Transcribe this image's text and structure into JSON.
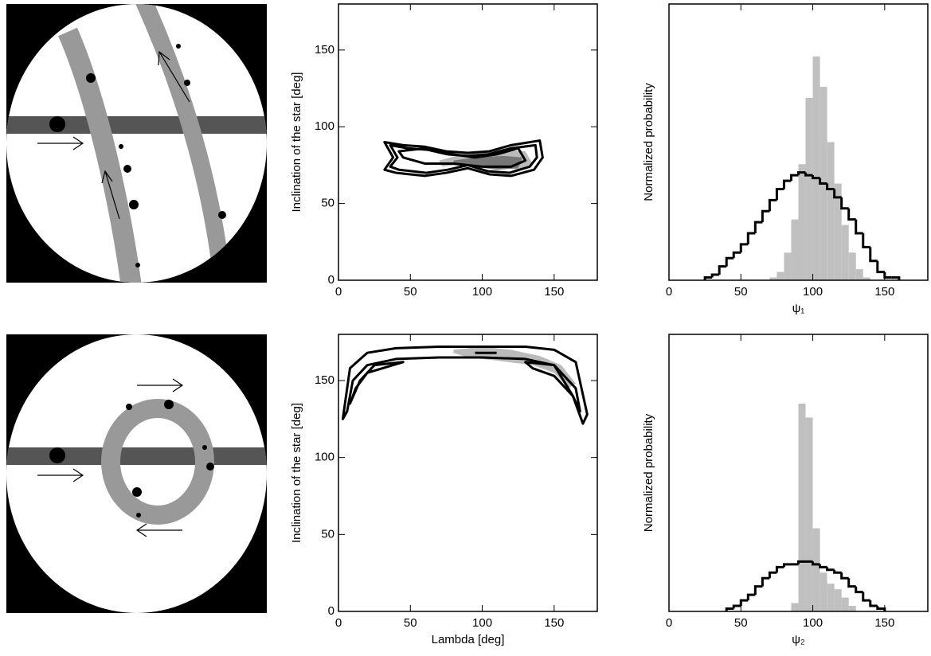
{
  "chart_data": [
    {
      "type": "contour",
      "ylabel": "Inclination of the star [deg]",
      "xlim": [
        0,
        180
      ],
      "ylim": [
        0,
        180
      ],
      "xticks": [
        0,
        50,
        100,
        150
      ],
      "yticks": [
        0,
        50,
        100,
        150
      ],
      "contours": [
        {
          "x": [
            70,
            90,
            110,
            130,
            135,
            125,
            110,
            90,
            72
          ],
          "y": [
            78,
            83,
            85,
            84,
            76,
            72,
            74,
            76,
            74
          ],
          "fill": "#bbbbbb"
        },
        {
          "x": [
            80,
            95,
            115,
            128,
            125,
            110,
            95,
            80
          ],
          "y": [
            78,
            80,
            81,
            80,
            73,
            72,
            74,
            75
          ],
          "fill": "#777777"
        },
        {
          "x": [
            32,
            45,
            60,
            75,
            90,
            105,
            120,
            140,
            142,
            136,
            120,
            105,
            90,
            75,
            60,
            40,
            32,
            38
          ],
          "y": [
            90,
            88,
            87,
            84,
            83,
            84,
            88,
            91,
            80,
            72,
            68,
            69,
            73,
            70,
            68,
            70,
            72,
            80
          ],
          "stroke": "#000000"
        },
        {
          "x": [
            36,
            48,
            62,
            76,
            90,
            104,
            120,
            137,
            138,
            133,
            119,
            104,
            90,
            76,
            61,
            42,
            36,
            41
          ],
          "y": [
            88,
            86,
            85,
            82,
            81,
            82,
            86,
            88,
            80,
            74,
            70,
            71,
            75,
            72,
            70,
            72,
            74,
            80
          ],
          "stroke": "#000000"
        },
        {
          "x": [
            42,
            60,
            80,
            95,
            110,
            125,
            130,
            120,
            100,
            80,
            60,
            45
          ],
          "y": [
            84,
            86,
            82,
            80,
            82,
            86,
            78,
            74,
            74,
            76,
            76,
            80
          ],
          "stroke": "#000000"
        }
      ]
    },
    {
      "type": "histogram",
      "ylabel": "Normalized probability",
      "xlabel": "ψ₁",
      "xlim": [
        0,
        180
      ],
      "ylim": [
        0,
        1
      ],
      "xticks": [
        0,
        50,
        100,
        150
      ],
      "bins": [
        25,
        30,
        35,
        40,
        45,
        50,
        55,
        60,
        65,
        70,
        75,
        80,
        85,
        90,
        95,
        100,
        105,
        110,
        115,
        120,
        125,
        130,
        135,
        140,
        145,
        150,
        155,
        160
      ],
      "series": [
        {
          "color": "#c0c0c0",
          "style": "fill",
          "values": [
            0,
            0,
            0,
            0,
            0,
            0,
            0,
            0,
            0,
            0.01,
            0.03,
            0.1,
            0.22,
            0.42,
            0.66,
            0.81,
            0.7,
            0.5,
            0.35,
            0.2,
            0.1,
            0.04,
            0.01,
            0,
            0,
            0,
            0
          ]
        },
        {
          "color": "#000000",
          "style": "step",
          "values": [
            0.01,
            0.02,
            0.05,
            0.08,
            0.1,
            0.13,
            0.17,
            0.21,
            0.25,
            0.29,
            0.33,
            0.36,
            0.38,
            0.39,
            0.38,
            0.37,
            0.35,
            0.33,
            0.3,
            0.26,
            0.22,
            0.17,
            0.12,
            0.07,
            0.03,
            0.01,
            0.01
          ]
        }
      ]
    },
    {
      "type": "contour",
      "ylabel": "Inclination of the star [deg]",
      "xlabel": "Lambda [deg]",
      "xlim": [
        0,
        180
      ],
      "ylim": [
        0,
        180
      ],
      "xticks": [
        0,
        50,
        100,
        150
      ],
      "yticks": [
        0,
        50,
        100,
        150
      ],
      "contours": [
        {
          "x": [
            80,
            100,
            120,
            140,
            155,
            165,
            160,
            150,
            135,
            110,
            90,
            80
          ],
          "y": [
            170,
            172,
            170,
            166,
            160,
            148,
            145,
            155,
            160,
            163,
            165,
            168
          ],
          "fill": "#bbbbbb"
        },
        {
          "x": [
            3,
            8,
            20,
            40,
            70,
            100,
            130,
            150,
            165,
            173,
            170,
            163,
            150,
            130,
            100,
            70,
            40,
            20,
            10,
            6
          ],
          "y": [
            125,
            158,
            168,
            171,
            172,
            172,
            172,
            170,
            162,
            128,
            122,
            140,
            160,
            164,
            165,
            165,
            164,
            160,
            150,
            130
          ],
          "stroke": "#000000"
        },
        {
          "x": [
            8,
            15,
            25,
            45,
            20,
            12,
            8
          ],
          "y": [
            135,
            150,
            160,
            162,
            155,
            145,
            135
          ],
          "stroke": "#000000"
        },
        {
          "x": [
            130,
            150,
            165,
            168,
            163,
            150,
            135
          ],
          "y": [
            162,
            160,
            145,
            130,
            140,
            153,
            158
          ],
          "stroke": "#000000"
        },
        {
          "x": [
            95,
            110
          ],
          "y": [
            168,
            168
          ],
          "stroke": "#000000"
        }
      ]
    },
    {
      "type": "histogram",
      "ylabel": "Normalized probability",
      "xlabel": "ψ₂",
      "xlim": [
        0,
        180
      ],
      "ylim": [
        0,
        1
      ],
      "xticks": [
        0,
        50,
        100,
        150
      ],
      "bins": [
        40,
        45,
        50,
        55,
        60,
        65,
        70,
        75,
        80,
        85,
        90,
        95,
        100,
        105,
        110,
        115,
        120,
        125,
        130,
        135,
        140,
        145,
        150
      ],
      "series": [
        {
          "color": "#c0c0c0",
          "style": "fill",
          "values": [
            0,
            0,
            0,
            0,
            0,
            0,
            0,
            0,
            0,
            0.03,
            0.75,
            0.7,
            0.3,
            0.14,
            0.1,
            0.08,
            0.05,
            0.02,
            0,
            0,
            0,
            0
          ]
        },
        {
          "color": "#000000",
          "style": "step",
          "values": [
            0.01,
            0.02,
            0.04,
            0.06,
            0.09,
            0.12,
            0.14,
            0.16,
            0.17,
            0.17,
            0.18,
            0.18,
            0.17,
            0.16,
            0.15,
            0.14,
            0.12,
            0.09,
            0.07,
            0.04,
            0.02,
            0.01
          ]
        }
      ]
    }
  ]
}
